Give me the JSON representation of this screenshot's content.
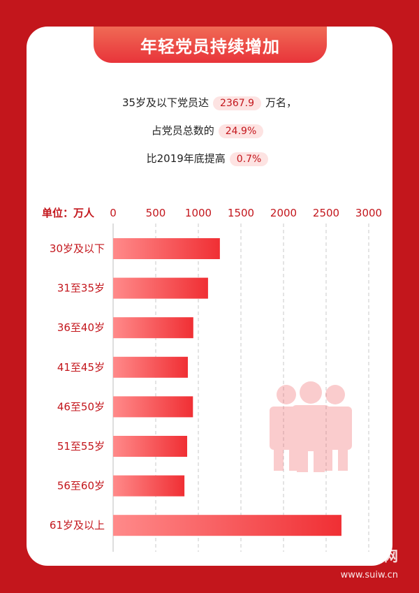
{
  "title": "年轻党员持续增加",
  "stats": {
    "line1_prefix": "35岁及以下党员达",
    "line1_value": "2367.9",
    "line1_suffix": "万名，",
    "line2_prefix": "占党员总数的",
    "line2_value": "24.9%",
    "line3_prefix": "比2019年底提高",
    "line3_value": "0.7%"
  },
  "unit_label": "单位：万人",
  "watermark": "遂川新闻网",
  "watermark_url": "www.suiw.cn",
  "colors": {
    "bar_start": "#ff8a8a",
    "bar_end": "#f02f34",
    "accent": "#c3161c",
    "background": "#c3161c"
  },
  "chart_data": {
    "type": "bar",
    "orientation": "horizontal",
    "categories": [
      "30岁及以下",
      "31至35岁",
      "36至40岁",
      "41至45岁",
      "46至50岁",
      "51至55岁",
      "56至60岁",
      "61岁及以上"
    ],
    "values": [
      1253,
      1114,
      941,
      877,
      937,
      869,
      837,
      2680
    ],
    "xlim": [
      0,
      3000
    ],
    "xticks": [
      0,
      500,
      1000,
      1500,
      2000,
      2500,
      3000
    ],
    "grid": true
  }
}
